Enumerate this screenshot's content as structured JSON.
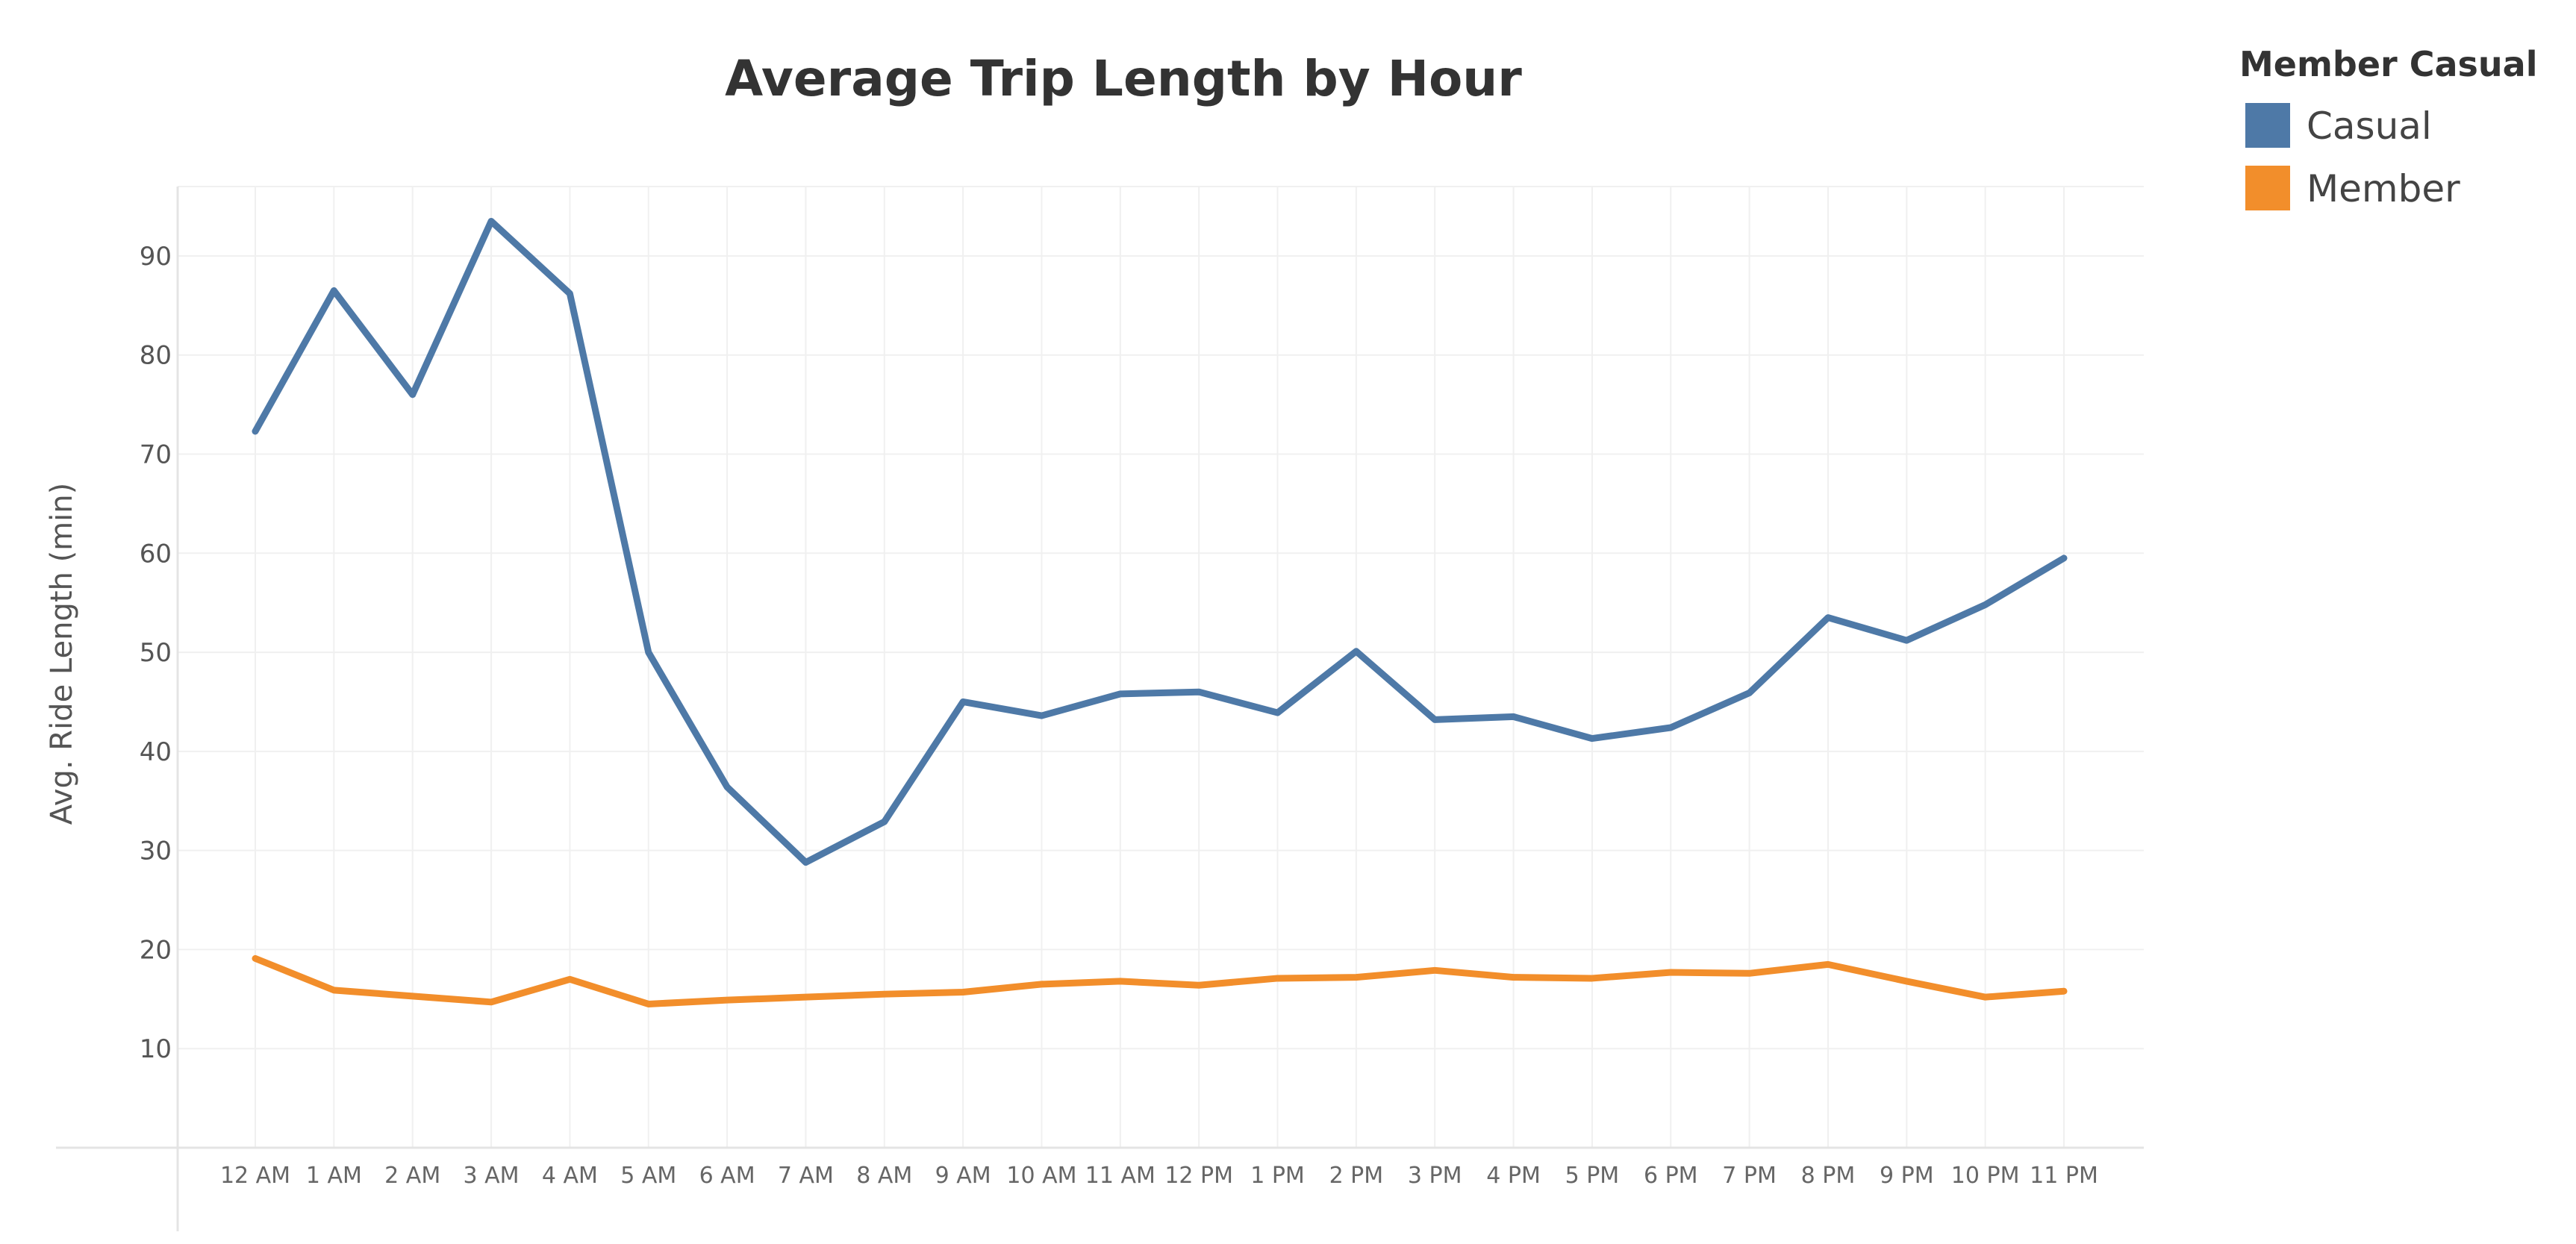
{
  "chart_data": {
    "type": "line",
    "title": "Average Trip Length by Hour",
    "xlabel": "",
    "ylabel": "Avg. Ride Length (min)",
    "categories": [
      "12 AM",
      "1 AM",
      "2 AM",
      "3 AM",
      "4 AM",
      "5 AM",
      "6 AM",
      "7 AM",
      "8 AM",
      "9 AM",
      "10 AM",
      "11 AM",
      "12 PM",
      "1 PM",
      "2 PM",
      "3 PM",
      "4 PM",
      "5 PM",
      "6 PM",
      "7 PM",
      "8 PM",
      "9 PM",
      "10 PM",
      "11 PM"
    ],
    "yticks": [
      10,
      20,
      30,
      40,
      50,
      60,
      70,
      80,
      90
    ],
    "ylim": [
      0,
      97
    ],
    "grid": true,
    "legend": {
      "title": "Member Casual",
      "placement": "top-right"
    },
    "series": [
      {
        "name": "Casual",
        "color": "#4e79a7",
        "values": [
          72.3,
          86.5,
          76.0,
          93.5,
          86.2,
          50.0,
          36.4,
          28.8,
          32.9,
          45.0,
          43.6,
          45.8,
          46.0,
          43.9,
          50.1,
          43.2,
          43.5,
          41.3,
          42.4,
          45.9,
          53.5,
          51.2,
          54.8,
          59.5
        ]
      },
      {
        "name": "Member",
        "color": "#f28e2b",
        "values": [
          19.1,
          15.9,
          15.3,
          14.7,
          17.0,
          14.5,
          14.9,
          15.2,
          15.5,
          15.7,
          16.5,
          16.8,
          16.4,
          17.1,
          17.2,
          17.9,
          17.2,
          17.1,
          17.7,
          17.6,
          18.5,
          16.8,
          15.2,
          15.8
        ]
      }
    ]
  }
}
